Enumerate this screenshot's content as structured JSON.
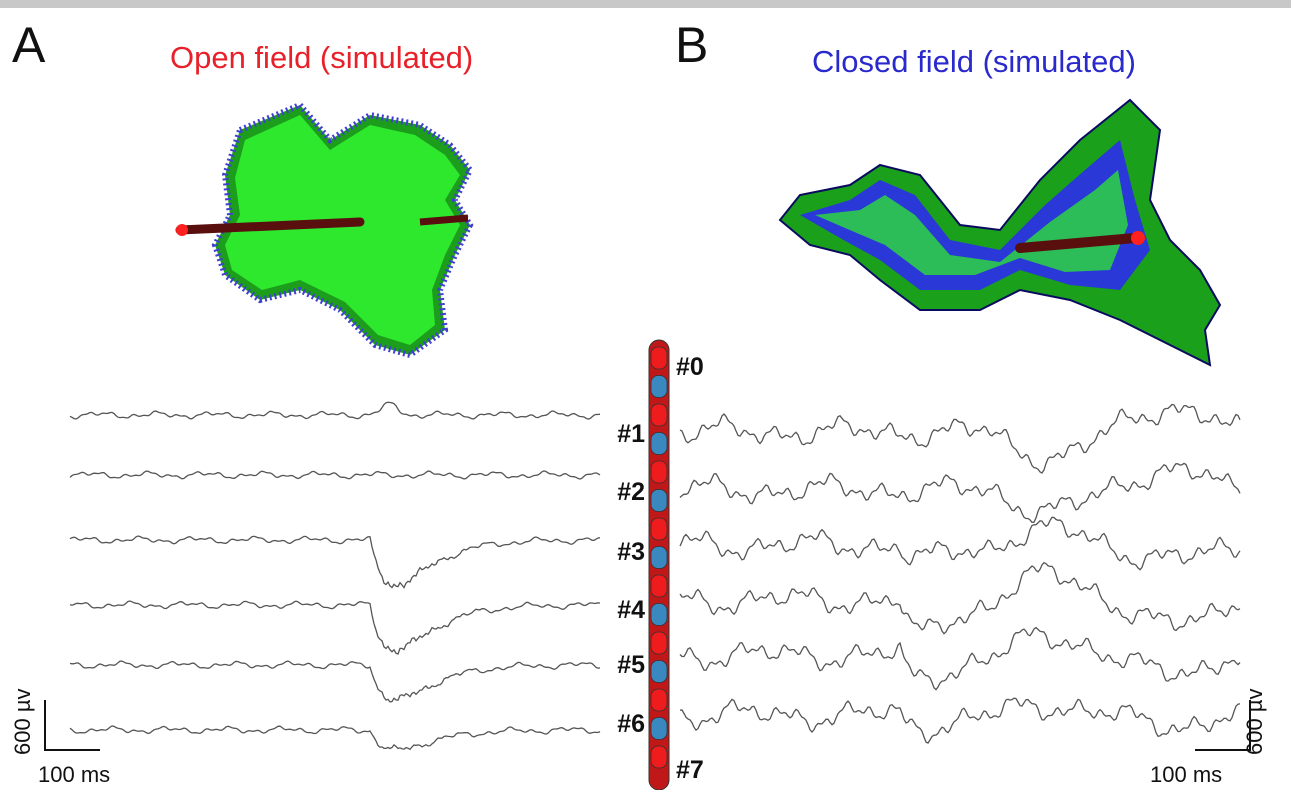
{
  "panels": [
    {
      "label": "A",
      "title": "Open field (simulated)",
      "scale_bar": {
        "amplitude": "600 µv",
        "time": "100 ms"
      }
    },
    {
      "label": "B",
      "title": "Closed field (simulated)",
      "scale_bar": {
        "amplitude": "600 µv",
        "time": "100 ms"
      }
    }
  ],
  "electrode": {
    "channels": [
      "#0",
      "#1",
      "#2",
      "#3",
      "#4",
      "#5",
      "#6",
      "#7"
    ]
  }
}
